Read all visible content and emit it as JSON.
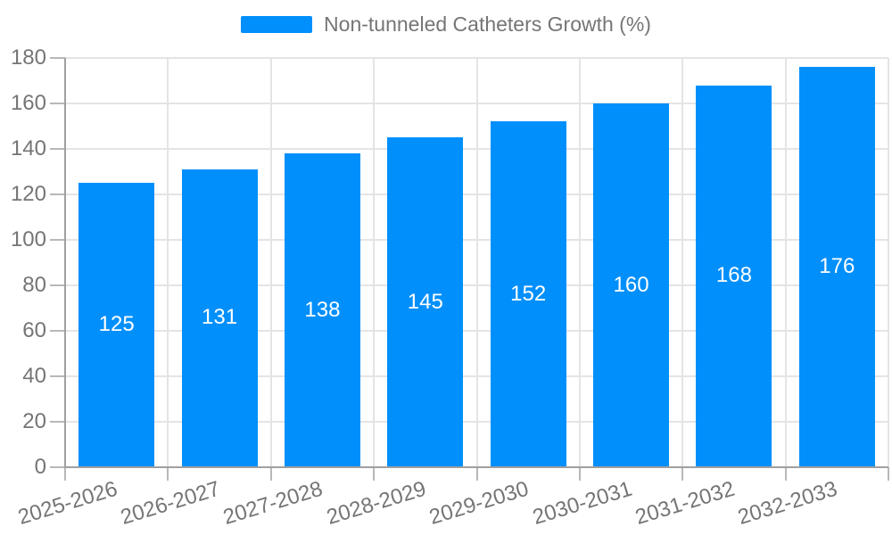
{
  "legend": {
    "label": "Non-tunneled Catheters Growth (%)"
  },
  "chart_data": {
    "type": "bar",
    "title": "",
    "categories": [
      "2025-2026",
      "2026-2027",
      "2027-2028",
      "2028-2029",
      "2029-2030",
      "2030-2031",
      "2031-2032",
      "2032-2033"
    ],
    "series": [
      {
        "name": "Non-tunneled Catheters Growth (%)",
        "values": [
          125,
          131,
          138,
          145,
          152,
          160,
          168,
          176
        ]
      }
    ],
    "xlabel": "",
    "ylabel": "",
    "ylim": [
      0,
      180
    ],
    "ytick_interval": 20,
    "yticks": [
      "0",
      "20",
      "40",
      "60",
      "80",
      "100",
      "120",
      "140",
      "160",
      "180"
    ],
    "grid": "on",
    "legend_position": "top-center",
    "value_labels": "centered-inside-bars",
    "x_label_rotation_deg": -17
  },
  "colors": {
    "bar": "#008ffb",
    "axis_label": "#757575",
    "legend_text": "#757575",
    "grid_line": "#e4e4e4",
    "axis_line": "#a0a0a0",
    "tick_mark": "#b8b8b8",
    "value_label": "#ffffff",
    "background": "#ffffff"
  }
}
